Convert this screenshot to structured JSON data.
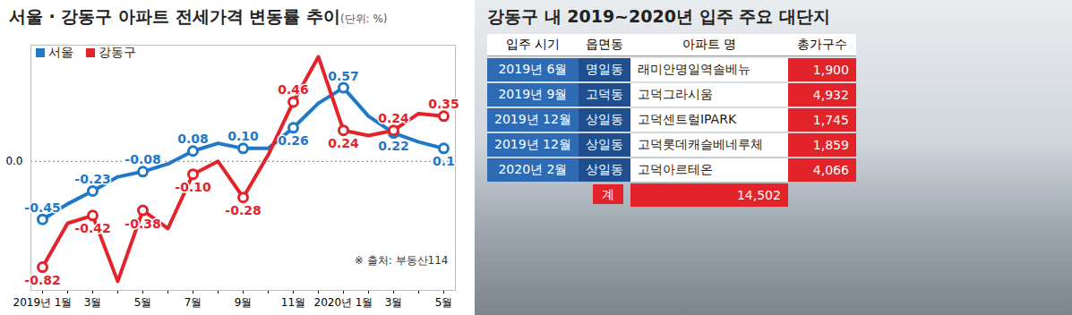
{
  "chart_data": {
    "type": "line",
    "title": "서울 · 강동구 아파트 전세가격 변동률 추이",
    "subtitle": "(단위: %)",
    "annotations": [
      "※ 출처: 부동산114"
    ],
    "categories": [
      "2019년 1월",
      null,
      "3월",
      null,
      "5월",
      null,
      "7월",
      null,
      "9월",
      null,
      "11월",
      null,
      "2020년 1월",
      null,
      "3월",
      null,
      "5월"
    ],
    "series": [
      {
        "name": "서울",
        "color": "#1f78c8",
        "marker": "circle",
        "values": [
          -0.45,
          -0.33,
          -0.23,
          -0.12,
          -0.08,
          -0.02,
          0.08,
          0.14,
          0.1,
          0.1,
          0.26,
          0.45,
          0.57,
          0.35,
          0.22,
          0.15,
          0.1
        ],
        "value_labels": [
          "-0.45",
          null,
          "-0.23",
          null,
          "-0.08",
          null,
          "0.08",
          null,
          "0.10",
          null,
          "0.26",
          null,
          "0.57",
          null,
          "0.22",
          null,
          "0.1"
        ]
      },
      {
        "name": "강동구",
        "color": "#e2232a",
        "marker": "circle",
        "values": [
          -0.82,
          -0.48,
          -0.42,
          -0.93,
          -0.38,
          -0.52,
          -0.1,
          0.0,
          -0.28,
          0.05,
          0.46,
          0.81,
          0.24,
          0.2,
          0.24,
          0.37,
          0.35
        ],
        "value_labels": [
          "-0.82",
          null,
          "-0.42",
          null,
          "-0.38",
          null,
          "-0.10",
          null,
          "-0.28",
          null,
          "0.46",
          null,
          "0.24",
          null,
          "0.24",
          null,
          "0.35"
        ]
      }
    ],
    "ylim": [
      -1,
      0.9
    ],
    "yticks": [
      0
    ],
    "grid": true,
    "legend": "top-left",
    "data_labels": true
  },
  "table": {
    "title": "강동구 내 2019~2020년 입주 주요 대단지",
    "header": [
      "입주 시기",
      "읍면동",
      "아파트 명",
      "총가구수"
    ],
    "rows": [
      [
        "2019년 6월",
        "명일동",
        "래미안명일역솔베뉴",
        "1,900"
      ],
      [
        "2019년 9월",
        "고덕동",
        "고덕그라시움",
        "4,932"
      ],
      [
        "2019년 12월",
        "상일동",
        "고덕센트럴IPARK",
        "1,745"
      ],
      [
        "2019년 12월",
        "상일동",
        "고덕롯데캐슬베네루체",
        "1,859"
      ],
      [
        "2020년 2월",
        "상일동",
        "고덕아르테온",
        "4,066"
      ]
    ],
    "total": [
      "계",
      "14,502"
    ]
  }
}
